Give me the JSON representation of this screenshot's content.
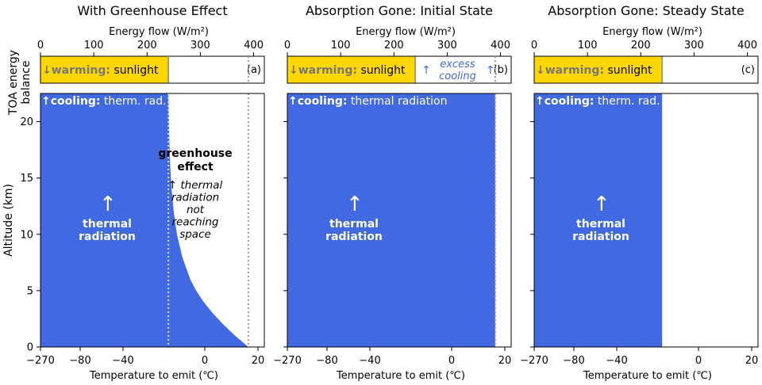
{
  "chart_data": {
    "type": "area",
    "shared": {
      "top_axis_label": "Energy flow (W/m²)",
      "top_ticks": [
        "0",
        "100",
        "200",
        "300",
        "400"
      ],
      "top_range": [
        0,
        420
      ],
      "bottom_axis_label": "Temperature to emit (℃)",
      "bottom_ticks": [
        "−270",
        "−80",
        "−40",
        "0",
        "20"
      ],
      "altitude_ticks": [
        "0",
        "5",
        "10",
        "15",
        "20"
      ],
      "altitude_range_km": [
        0,
        22.5
      ],
      "y_label": "Altitude  (km)",
      "toa_label_line1": "TOA energy",
      "toa_label_line2": "balance",
      "colors": {
        "thermal": "#4169e1",
        "sunlight": "#ffd700",
        "dotted": "#999999"
      }
    },
    "panels": [
      {
        "title": "With Greenhouse Effect",
        "tag": "(a)",
        "sunlight_wm2": 240,
        "thermal_bar_wm2": 240,
        "warming_bold": "↓warming:",
        "warming_text": " sunlight",
        "cooling_bold": "↑cooling:",
        "cooling_text": " therm. rad.",
        "dotted_lines_wm2": [
          240,
          390
        ],
        "emission_profile": {
          "altitude_km": [
            0,
            1,
            2,
            3,
            4,
            5,
            6,
            8,
            10,
            12,
            14,
            16,
            18,
            20,
            22.5
          ],
          "energy_wm2": [
            390,
            365,
            343,
            323,
            306,
            292,
            281,
            266,
            256,
            250,
            246,
            243.5,
            242,
            241,
            240
          ]
        },
        "center_arrow": "↑",
        "center_label_1": "thermal",
        "center_label_2": "radiation",
        "ghe_title_1": "greenhouse",
        "ghe_title_2": "effect",
        "ghe_lines": [
          "↑ thermal",
          "radiation",
          "not",
          "reaching",
          "space"
        ]
      },
      {
        "title": "Absorption Gone: Initial State",
        "tag": "(b)",
        "sunlight_wm2": 240,
        "thermal_bar_wm2": 390,
        "warming_bold": "↓warming:",
        "warming_text": " sunlight",
        "cooling_bold": "↑cooling:",
        "cooling_text": " thermal radiation",
        "dotted_lines_wm2": [
          390
        ],
        "excess_arrow_left": "↑",
        "excess_arrow_right": "↑",
        "excess_line_1": "excess",
        "excess_line_2": "cooling",
        "center_arrow": "↑",
        "center_label_1": "thermal",
        "center_label_2": "radiation"
      },
      {
        "title": "Absorption Gone: Steady State",
        "tag": "(c)",
        "sunlight_wm2": 240,
        "thermal_bar_wm2": 240,
        "warming_bold": "↓warming:",
        "warming_text": " sunlight",
        "cooling_bold": "↑cooling:",
        "cooling_text": " therm. rad.",
        "dotted_lines_wm2": [],
        "center_arrow": "↑",
        "center_label_1": "thermal",
        "center_label_2": "radiation"
      }
    ]
  }
}
